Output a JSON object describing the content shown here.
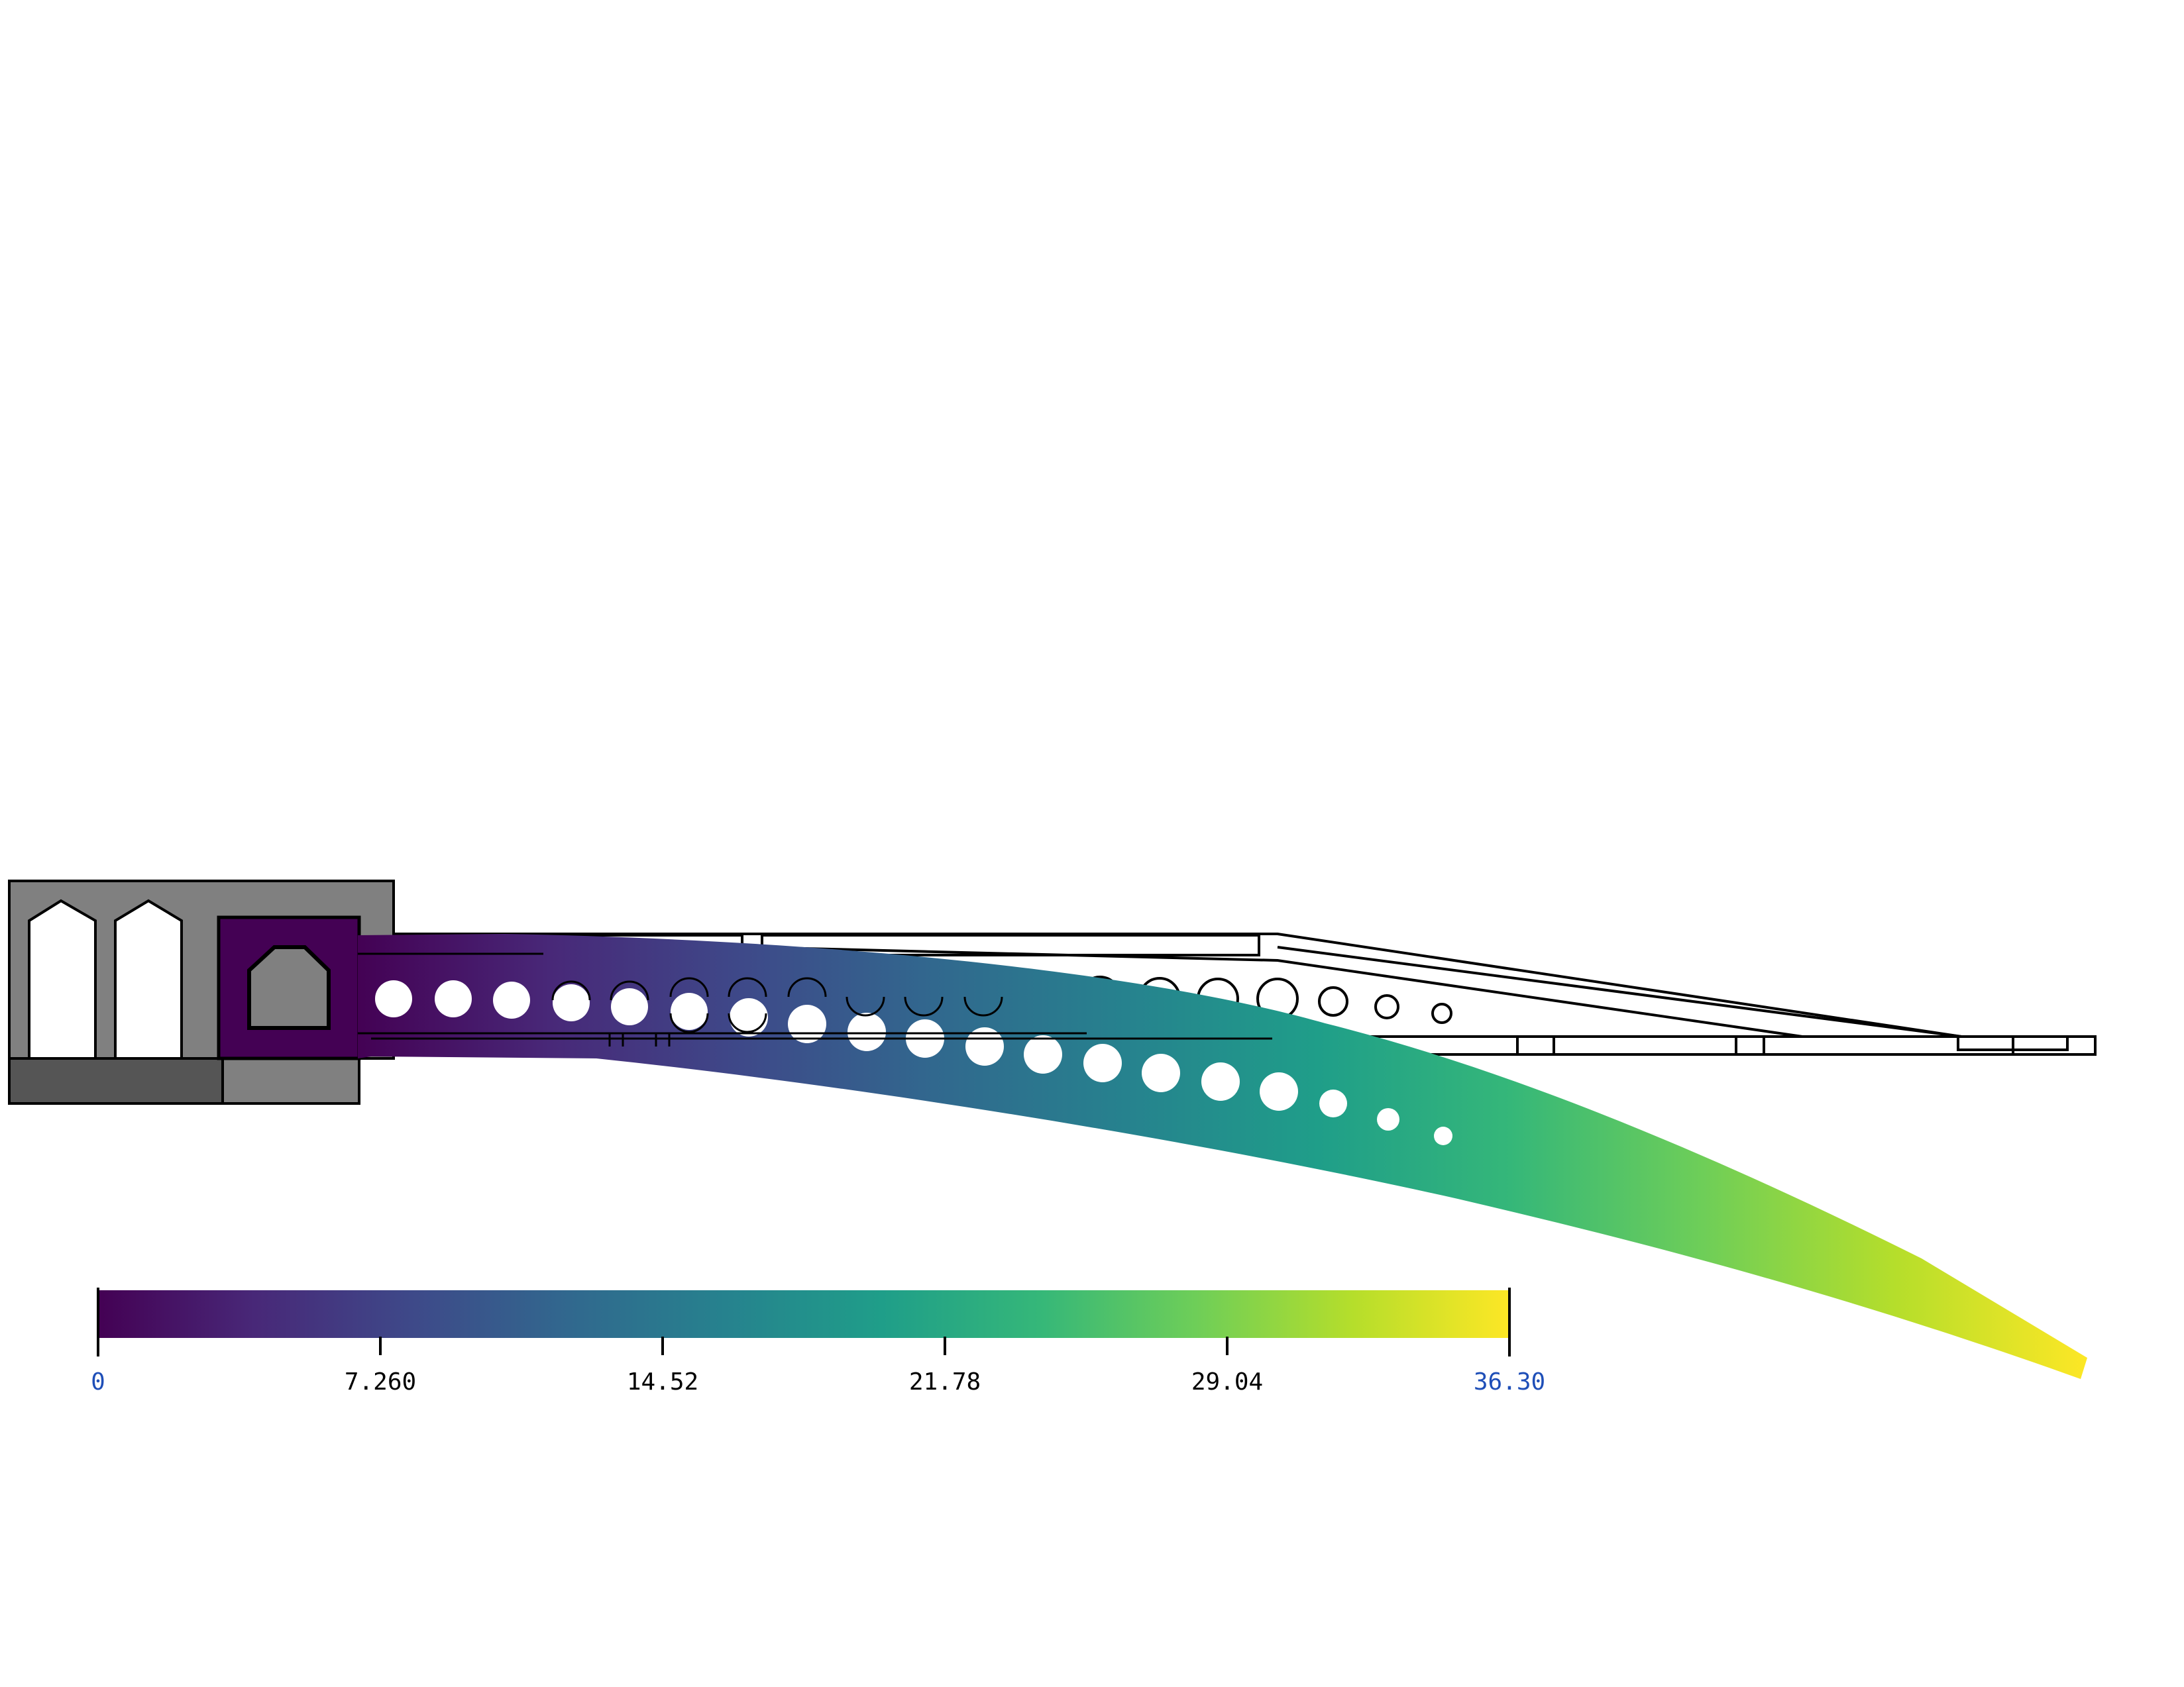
{
  "colorbar": {
    "colormap": "viridis",
    "min": 0,
    "max": 36.3,
    "ticks": [
      {
        "value": 0,
        "label": "0",
        "color": "#1f4fb8"
      },
      {
        "value": 7.26,
        "label": "7.260",
        "color": "#000000"
      },
      {
        "value": 14.52,
        "label": "14.52",
        "color": "#000000"
      },
      {
        "value": 21.78,
        "label": "21.78",
        "color": "#000000"
      },
      {
        "value": 29.04,
        "label": "29.04",
        "color": "#000000"
      },
      {
        "value": 36.3,
        "label": "36.30",
        "color": "#1f4fb8"
      }
    ],
    "stops": [
      "#440154",
      "#482878",
      "#3e4989",
      "#31688e",
      "#26828e",
      "#1f9e89",
      "#35b779",
      "#6ece58",
      "#b5de2b",
      "#fde725"
    ]
  },
  "colors": {
    "support_block": "#808080",
    "support_base": "#555555",
    "support_base_right": "#808080",
    "clamp_fill": "#440154",
    "outline": "#000000"
  }
}
